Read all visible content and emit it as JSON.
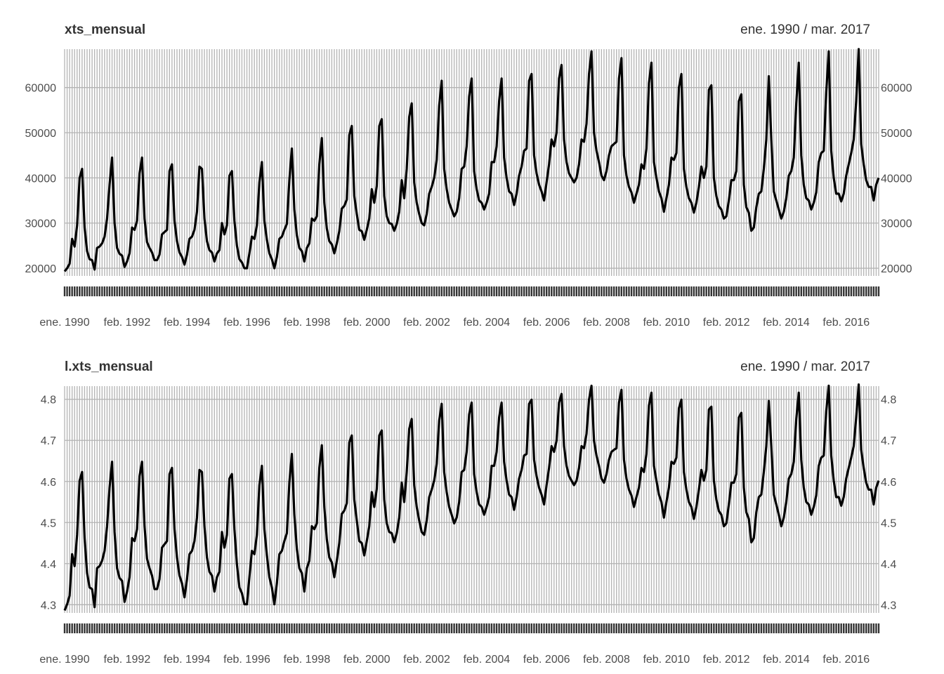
{
  "chart_data": [
    {
      "type": "line",
      "title": "xts_mensual",
      "date_range": "ene. 1990 / mar. 2017",
      "x_start": "1990-01",
      "x_end": "2017-03",
      "ylim": [
        18300,
        68500
      ],
      "y_ticks": [
        20000,
        30000,
        40000,
        50000,
        60000
      ],
      "y_tick_labels": [
        "20000",
        "30000",
        "40000",
        "50000",
        "60000"
      ],
      "x_tick_labels": [
        "ene. 1990",
        "feb. 1992",
        "feb. 1994",
        "feb. 1996",
        "feb. 1998",
        "feb. 2000",
        "feb. 2002",
        "feb. 2004",
        "feb. 2006",
        "feb. 2008",
        "feb. 2010",
        "feb. 2012",
        "feb. 2014",
        "feb. 2016"
      ],
      "x_tick_dates": [
        "1990-01",
        "1992-02",
        "1994-02",
        "1996-02",
        "1998-02",
        "2000-02",
        "2002-02",
        "2004-02",
        "2006-02",
        "2008-02",
        "2010-02",
        "2012-02",
        "2014-02",
        "2016-02"
      ],
      "grid": true,
      "series": [
        {
          "values": [
            19300,
            20000,
            21000,
            26500,
            24800,
            29500,
            40000,
            42000,
            29000,
            23800,
            22000,
            21800,
            19700,
            24500,
            24800,
            25500,
            27000,
            31000,
            38500,
            44500,
            30000,
            24500,
            23200,
            22800,
            20300,
            21500,
            23300,
            29000,
            28500,
            30500,
            41000,
            44500,
            31000,
            25800,
            24500,
            23500,
            21800,
            21800,
            23000,
            27500,
            28000,
            28500,
            41500,
            43000,
            30500,
            26000,
            23500,
            22500,
            20800,
            23000,
            26500,
            27000,
            28500,
            32500,
            42500,
            42000,
            31000,
            26000,
            24000,
            23500,
            21500,
            23300,
            24000,
            30000,
            27500,
            29500,
            40500,
            41500,
            30500,
            25000,
            22000,
            21300,
            20000,
            20000,
            23300,
            27000,
            26500,
            29500,
            39000,
            43500,
            30500,
            26300,
            23300,
            22000,
            20000,
            22500,
            26500,
            27000,
            28500,
            29800,
            39500,
            46500,
            33000,
            27300,
            24500,
            23800,
            21500,
            24500,
            25500,
            31000,
            30500,
            31500,
            43000,
            48800,
            34500,
            28800,
            26000,
            25300,
            23300,
            25500,
            28200,
            33200,
            33800,
            35200,
            49500,
            51500,
            36000,
            32000,
            28500,
            28200,
            26300,
            28500,
            31000,
            37500,
            34500,
            38200,
            51500,
            53000,
            36000,
            31500,
            30000,
            29800,
            28300,
            29800,
            32500,
            39500,
            35500,
            42000,
            53500,
            56500,
            39000,
            34500,
            32000,
            30000,
            29500,
            32000,
            36500,
            38000,
            40000,
            44000,
            56000,
            61500,
            42000,
            37500,
            34500,
            33000,
            31500,
            32500,
            35500,
            42000,
            42500,
            47000,
            58000,
            62000,
            41500,
            37500,
            35000,
            34500,
            33000,
            34500,
            36500,
            43500,
            43500,
            47000,
            57000,
            62000,
            44500,
            40000,
            37000,
            36500,
            34000,
            36500,
            40500,
            42500,
            46000,
            46500,
            61500,
            63000,
            45000,
            41000,
            38500,
            37000,
            35000,
            39000,
            43000,
            48500,
            47000,
            50000,
            62000,
            65000,
            48500,
            43500,
            41000,
            40000,
            39000,
            40000,
            43000,
            48500,
            48000,
            52000,
            63000,
            68000,
            50000,
            46000,
            43500,
            40500,
            39500,
            41500,
            45000,
            47000,
            47500,
            48000,
            62000,
            66500,
            45000,
            40500,
            38000,
            36800,
            34500,
            36500,
            38500,
            43000,
            42000,
            46500,
            61000,
            65500,
            43500,
            40000,
            37000,
            35500,
            32500,
            35500,
            38500,
            44500,
            44000,
            45500,
            60000,
            63000,
            42000,
            38000,
            35500,
            34500,
            32300,
            34500,
            38000,
            42500,
            40000,
            42500,
            59500,
            60500,
            40000,
            36000,
            33700,
            33000,
            31000,
            31500,
            35000,
            39500,
            39500,
            41500,
            57000,
            58500,
            38500,
            33500,
            32300,
            28300,
            29000,
            33500,
            36500,
            37000,
            42000,
            48500,
            62500,
            48500,
            37000,
            35000,
            33000,
            31000,
            32500,
            35500,
            40500,
            41500,
            44500,
            56500,
            65500,
            45000,
            38500,
            35500,
            35000,
            33000,
            34500,
            36800,
            43500,
            45500,
            46000,
            59000,
            68000,
            46000,
            40000,
            36500,
            36500,
            34800,
            36500,
            40500,
            43000,
            45500,
            48500,
            57000,
            68500,
            47500,
            43000,
            39500,
            38000,
            38000,
            35000,
            38500,
            40000
          ]
        }
      ]
    },
    {
      "type": "line",
      "title": "l.xts_mensual",
      "date_range": "ene. 1990 / mar. 2017",
      "x_start": "1990-01",
      "x_end": "2017-03",
      "ylim": [
        4.28,
        4.832
      ],
      "y_ticks": [
        4.3,
        4.4,
        4.5,
        4.6,
        4.7,
        4.8
      ],
      "y_tick_labels": [
        "4.3",
        "4.4",
        "4.5",
        "4.6",
        "4.7",
        "4.8"
      ],
      "x_tick_labels": [
        "ene. 1990",
        "feb. 1992",
        "feb. 1994",
        "feb. 1996",
        "feb. 1998",
        "feb. 2000",
        "feb. 2002",
        "feb. 2004",
        "feb. 2006",
        "feb. 2008",
        "feb. 2010",
        "feb. 2012",
        "feb. 2014",
        "feb. 2016"
      ],
      "x_tick_dates": [
        "1990-01",
        "1992-02",
        "1994-02",
        "1996-02",
        "1998-02",
        "2000-02",
        "2002-02",
        "2004-02",
        "2006-02",
        "2008-02",
        "2010-02",
        "2012-02",
        "2014-02",
        "2016-02"
      ],
      "grid": true,
      "series": [
        {
          "values": [
            4.286,
            4.301,
            4.322,
            4.423,
            4.394,
            4.47,
            4.602,
            4.623,
            4.462,
            4.377,
            4.342,
            4.338,
            4.294,
            4.389,
            4.394,
            4.407,
            4.431,
            4.491,
            4.585,
            4.648,
            4.477,
            4.389,
            4.365,
            4.358,
            4.307,
            4.332,
            4.367,
            4.462,
            4.455,
            4.484,
            4.613,
            4.648,
            4.491,
            4.412,
            4.389,
            4.371,
            4.338,
            4.338,
            4.362,
            4.439,
            4.447,
            4.455,
            4.618,
            4.633,
            4.484,
            4.415,
            4.371,
            4.352,
            4.318,
            4.362,
            4.423,
            4.431,
            4.455,
            4.512,
            4.628,
            4.623,
            4.491,
            4.415,
            4.38,
            4.371,
            4.332,
            4.367,
            4.38,
            4.477,
            4.439,
            4.47,
            4.607,
            4.618,
            4.484,
            4.398,
            4.342,
            4.328,
            4.301,
            4.301,
            4.367,
            4.431,
            4.423,
            4.47,
            4.591,
            4.638,
            4.484,
            4.42,
            4.367,
            4.342,
            4.301,
            4.352,
            4.423,
            4.431,
            4.455,
            4.474,
            4.597,
            4.667,
            4.519,
            4.436,
            4.389,
            4.377,
            4.332,
            4.389,
            4.407,
            4.491,
            4.484,
            4.498,
            4.633,
            4.688,
            4.538,
            4.459,
            4.415,
            4.403,
            4.367,
            4.407,
            4.45,
            4.521,
            4.529,
            4.547,
            4.695,
            4.712,
            4.556,
            4.505,
            4.455,
            4.45,
            4.42,
            4.455,
            4.491,
            4.574,
            4.538,
            4.582,
            4.712,
            4.724,
            4.556,
            4.498,
            4.477,
            4.474,
            4.452,
            4.474,
            4.512,
            4.597,
            4.55,
            4.623,
            4.728,
            4.752,
            4.591,
            4.538,
            4.505,
            4.477,
            4.47,
            4.505,
            4.562,
            4.58,
            4.602,
            4.643,
            4.748,
            4.789,
            4.623,
            4.574,
            4.538,
            4.519,
            4.498,
            4.512,
            4.55,
            4.623,
            4.628,
            4.672,
            4.763,
            4.792,
            4.618,
            4.574,
            4.544,
            4.538,
            4.519,
            4.538,
            4.562,
            4.638,
            4.638,
            4.672,
            4.756,
            4.792,
            4.648,
            4.602,
            4.568,
            4.562,
            4.531,
            4.562,
            4.607,
            4.628,
            4.663,
            4.667,
            4.789,
            4.799,
            4.653,
            4.613,
            4.585,
            4.568,
            4.544,
            4.591,
            4.633,
            4.686,
            4.672,
            4.699,
            4.792,
            4.813,
            4.686,
            4.638,
            4.613,
            4.602,
            4.591,
            4.602,
            4.633,
            4.686,
            4.681,
            4.716,
            4.799,
            4.833,
            4.699,
            4.663,
            4.638,
            4.607,
            4.597,
            4.618,
            4.653,
            4.672,
            4.677,
            4.681,
            4.792,
            4.823,
            4.653,
            4.607,
            4.58,
            4.566,
            4.538,
            4.562,
            4.585,
            4.633,
            4.623,
            4.667,
            4.785,
            4.816,
            4.638,
            4.602,
            4.568,
            4.55,
            4.512,
            4.55,
            4.585,
            4.648,
            4.643,
            4.658,
            4.778,
            4.799,
            4.623,
            4.58,
            4.55,
            4.538,
            4.509,
            4.538,
            4.58,
            4.628,
            4.602,
            4.628,
            4.775,
            4.782,
            4.602,
            4.556,
            4.528,
            4.519,
            4.491,
            4.498,
            4.544,
            4.597,
            4.597,
            4.618,
            4.756,
            4.767,
            4.585,
            4.525,
            4.509,
            4.452,
            4.462,
            4.525,
            4.562,
            4.568,
            4.623,
            4.686,
            4.796,
            4.686,
            4.568,
            4.544,
            4.519,
            4.491,
            4.512,
            4.55,
            4.607,
            4.618,
            4.648,
            4.752,
            4.816,
            4.653,
            4.585,
            4.55,
            4.544,
            4.519,
            4.538,
            4.566,
            4.638,
            4.658,
            4.663,
            4.771,
            4.833,
            4.663,
            4.602,
            4.562,
            4.562,
            4.541,
            4.562,
            4.607,
            4.633,
            4.658,
            4.686,
            4.756,
            4.836,
            4.677,
            4.633,
            4.597,
            4.58,
            4.58,
            4.544,
            4.585,
            4.602
          ]
        }
      ]
    }
  ]
}
